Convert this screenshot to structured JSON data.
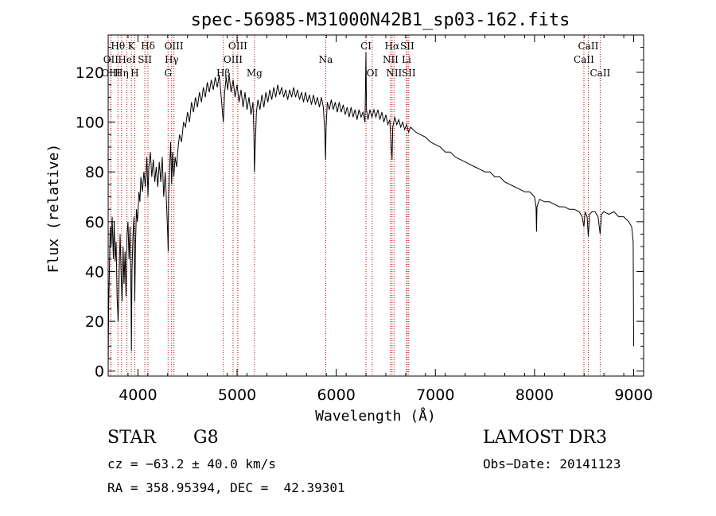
{
  "chart_data": {
    "type": "line",
    "title": "spec-56985-M31000N42B1_sp03-162.fits",
    "xlabel": "Wavelength (Å)",
    "ylabel": "Flux (relative)",
    "xlim": [
      3700,
      9100
    ],
    "ylim": [
      -2,
      135
    ],
    "x_ticks": [
      4000,
      5000,
      6000,
      7000,
      8000,
      9000
    ],
    "y_ticks": [
      0,
      20,
      40,
      60,
      80,
      100,
      120
    ],
    "series": [
      {
        "name": "spectrum",
        "points": [
          [
            3700,
            3
          ],
          [
            3705,
            25
          ],
          [
            3712,
            40
          ],
          [
            3720,
            58
          ],
          [
            3730,
            50
          ],
          [
            3740,
            62
          ],
          [
            3752,
            45
          ],
          [
            3760,
            60
          ],
          [
            3770,
            44
          ],
          [
            3780,
            52
          ],
          [
            3790,
            30
          ],
          [
            3800,
            20
          ],
          [
            3810,
            38
          ],
          [
            3820,
            55
          ],
          [
            3830,
            40
          ],
          [
            3840,
            28
          ],
          [
            3850,
            50
          ],
          [
            3860,
            35
          ],
          [
            3870,
            48
          ],
          [
            3880,
            30
          ],
          [
            3890,
            55
          ],
          [
            3900,
            60
          ],
          [
            3910,
            45
          ],
          [
            3920,
            58
          ],
          [
            3930,
            30
          ],
          [
            3934,
            8
          ],
          [
            3940,
            40
          ],
          [
            3950,
            55
          ],
          [
            3960,
            62
          ],
          [
            3968,
            28
          ],
          [
            3975,
            50
          ],
          [
            3985,
            65
          ],
          [
            3995,
            60
          ],
          [
            4010,
            72
          ],
          [
            4020,
            68
          ],
          [
            4030,
            78
          ],
          [
            4045,
            72
          ],
          [
            4060,
            80
          ],
          [
            4075,
            74
          ],
          [
            4090,
            86
          ],
          [
            4101,
            70
          ],
          [
            4110,
            82
          ],
          [
            4125,
            88
          ],
          [
            4140,
            78
          ],
          [
            4155,
            85
          ],
          [
            4170,
            76
          ],
          [
            4185,
            82
          ],
          [
            4200,
            74
          ],
          [
            4215,
            84
          ],
          [
            4230,
            76
          ],
          [
            4245,
            86
          ],
          [
            4260,
            70
          ],
          [
            4275,
            80
          ],
          [
            4290,
            66
          ],
          [
            4300,
            55
          ],
          [
            4305,
            48
          ],
          [
            4310,
            70
          ],
          [
            4320,
            82
          ],
          [
            4330,
            92
          ],
          [
            4340,
            75
          ],
          [
            4350,
            88
          ],
          [
            4362,
            78
          ],
          [
            4375,
            86
          ],
          [
            4390,
            82
          ],
          [
            4405,
            90
          ],
          [
            4420,
            95
          ],
          [
            4440,
            92
          ],
          [
            4460,
            100
          ],
          [
            4480,
            98
          ],
          [
            4500,
            104
          ],
          [
            4520,
            100
          ],
          [
            4540,
            108
          ],
          [
            4560,
            104
          ],
          [
            4580,
            110
          ],
          [
            4600,
            106
          ],
          [
            4620,
            112
          ],
          [
            4640,
            108
          ],
          [
            4660,
            114
          ],
          [
            4680,
            110
          ],
          [
            4700,
            116
          ],
          [
            4720,
            112
          ],
          [
            4740,
            117
          ],
          [
            4760,
            113
          ],
          [
            4780,
            118
          ],
          [
            4800,
            114
          ],
          [
            4820,
            119
          ],
          [
            4840,
            110
          ],
          [
            4861,
            100
          ],
          [
            4875,
            112
          ],
          [
            4890,
            118
          ],
          [
            4905,
            113
          ],
          [
            4920,
            119
          ],
          [
            4940,
            112
          ],
          [
            4960,
            117
          ],
          [
            4980,
            110
          ],
          [
            5000,
            115
          ],
          [
            5020,
            108
          ],
          [
            5040,
            113
          ],
          [
            5060,
            106
          ],
          [
            5080,
            112
          ],
          [
            5100,
            105
          ],
          [
            5120,
            110
          ],
          [
            5140,
            103
          ],
          [
            5160,
            108
          ],
          [
            5170,
            95
          ],
          [
            5175,
            80
          ],
          [
            5183,
            90
          ],
          [
            5195,
            104
          ],
          [
            5210,
            109
          ],
          [
            5230,
            105
          ],
          [
            5250,
            111
          ],
          [
            5270,
            106
          ],
          [
            5290,
            112
          ],
          [
            5310,
            108
          ],
          [
            5330,
            113
          ],
          [
            5350,
            109
          ],
          [
            5370,
            114
          ],
          [
            5390,
            110
          ],
          [
            5410,
            115
          ],
          [
            5430,
            111
          ],
          [
            5450,
            114
          ],
          [
            5470,
            110
          ],
          [
            5490,
            113
          ],
          [
            5510,
            109
          ],
          [
            5530,
            113
          ],
          [
            5550,
            110
          ],
          [
            5570,
            114
          ],
          [
            5590,
            110
          ],
          [
            5610,
            113
          ],
          [
            5630,
            109
          ],
          [
            5650,
            112
          ],
          [
            5670,
            108
          ],
          [
            5690,
            112
          ],
          [
            5710,
            108
          ],
          [
            5730,
            111
          ],
          [
            5750,
            107
          ],
          [
            5770,
            111
          ],
          [
            5790,
            107
          ],
          [
            5810,
            110
          ],
          [
            5830,
            106
          ],
          [
            5850,
            110
          ],
          [
            5870,
            106
          ],
          [
            5885,
            96
          ],
          [
            5892,
            85
          ],
          [
            5898,
            98
          ],
          [
            5910,
            108
          ],
          [
            5930,
            105
          ],
          [
            5950,
            109
          ],
          [
            5970,
            105
          ],
          [
            5990,
            108
          ],
          [
            6010,
            104
          ],
          [
            6030,
            108
          ],
          [
            6050,
            104
          ],
          [
            6070,
            107
          ],
          [
            6090,
            103
          ],
          [
            6110,
            106
          ],
          [
            6130,
            102
          ],
          [
            6150,
            106
          ],
          [
            6170,
            102
          ],
          [
            6190,
            105
          ],
          [
            6210,
            101
          ],
          [
            6230,
            105
          ],
          [
            6250,
            102
          ],
          [
            6270,
            104
          ],
          [
            6290,
            100
          ],
          [
            6300,
            128
          ],
          [
            6305,
            105
          ],
          [
            6320,
            101
          ],
          [
            6340,
            105
          ],
          [
            6360,
            102
          ],
          [
            6380,
            105
          ],
          [
            6400,
            102
          ],
          [
            6420,
            105
          ],
          [
            6440,
            101
          ],
          [
            6460,
            104
          ],
          [
            6480,
            100
          ],
          [
            6500,
            103
          ],
          [
            6520,
            99
          ],
          [
            6540,
            101
          ],
          [
            6555,
            90
          ],
          [
            6563,
            85
          ],
          [
            6570,
            98
          ],
          [
            6590,
            102
          ],
          [
            6610,
            99
          ],
          [
            6630,
            101
          ],
          [
            6650,
            98
          ],
          [
            6670,
            100
          ],
          [
            6690,
            97
          ],
          [
            6710,
            99
          ],
          [
            6730,
            96
          ],
          [
            6750,
            98
          ],
          [
            6800,
            96
          ],
          [
            6850,
            95
          ],
          [
            6900,
            94
          ],
          [
            6950,
            92
          ],
          [
            7000,
            91
          ],
          [
            7050,
            90
          ],
          [
            7100,
            88
          ],
          [
            7150,
            88
          ],
          [
            7200,
            86
          ],
          [
            7250,
            85
          ],
          [
            7300,
            84
          ],
          [
            7350,
            83
          ],
          [
            7400,
            82
          ],
          [
            7450,
            81
          ],
          [
            7500,
            80
          ],
          [
            7550,
            80
          ],
          [
            7600,
            78
          ],
          [
            7650,
            78
          ],
          [
            7700,
            76
          ],
          [
            7750,
            75
          ],
          [
            7800,
            74
          ],
          [
            7850,
            73
          ],
          [
            7900,
            72
          ],
          [
            7950,
            72
          ],
          [
            8000,
            70
          ],
          [
            8015,
            66
          ],
          [
            8020,
            56
          ],
          [
            8025,
            66
          ],
          [
            8050,
            69
          ],
          [
            8100,
            68
          ],
          [
            8150,
            68
          ],
          [
            8200,
            67
          ],
          [
            8250,
            66
          ],
          [
            8300,
            66
          ],
          [
            8350,
            65
          ],
          [
            8400,
            65
          ],
          [
            8450,
            64
          ],
          [
            8480,
            62
          ],
          [
            8498,
            58
          ],
          [
            8510,
            64
          ],
          [
            8530,
            62
          ],
          [
            8542,
            54
          ],
          [
            8555,
            63
          ],
          [
            8580,
            64
          ],
          [
            8610,
            64
          ],
          [
            8640,
            62
          ],
          [
            8662,
            55
          ],
          [
            8675,
            63
          ],
          [
            8700,
            64
          ],
          [
            8750,
            63
          ],
          [
            8800,
            64
          ],
          [
            8850,
            62
          ],
          [
            8900,
            62
          ],
          [
            8950,
            60
          ],
          [
            8980,
            58
          ],
          [
            8995,
            52
          ],
          [
            9000,
            10
          ]
        ]
      }
    ],
    "spectral_lines": [
      {
        "label": "Hθ",
        "x": 3798,
        "row": 0
      },
      {
        "label": "OII",
        "x": 3727,
        "row": 1
      },
      {
        "label": "OIII",
        "x": 3727,
        "row": 2
      },
      {
        "label": "K",
        "x": 3934,
        "row": 0
      },
      {
        "label": "HeI",
        "x": 3889,
        "row": 1
      },
      {
        "label": "Hη",
        "x": 3835,
        "row": 2
      },
      {
        "label": "Hδ",
        "x": 4101,
        "row": 0
      },
      {
        "label": "SII",
        "x": 4070,
        "row": 1
      },
      {
        "label": "H",
        "x": 3968,
        "row": 2
      },
      {
        "label": "OIII",
        "x": 4363,
        "row": 0
      },
      {
        "label": "Hγ",
        "x": 4340,
        "row": 1
      },
      {
        "label": "G",
        "x": 4304,
        "row": 2
      },
      {
        "label": "OIII",
        "x": 5007,
        "row": 0
      },
      {
        "label": "OIII",
        "x": 4959,
        "row": 1
      },
      {
        "label": "Hβ",
        "x": 4861,
        "row": 2
      },
      {
        "label": "Mg",
        "x": 5175,
        "row": 2
      },
      {
        "label": "Na",
        "x": 5894,
        "row": 1
      },
      {
        "label": "CI",
        "x": 6300,
        "row": 0
      },
      {
        "label": "OI",
        "x": 6363,
        "row": 2
      },
      {
        "label": "Hα",
        "x": 6563,
        "row": 0
      },
      {
        "label": "NII",
        "x": 6548,
        "row": 1
      },
      {
        "label": "NII",
        "x": 6583,
        "row": 2
      },
      {
        "label": "SII",
        "x": 6716,
        "row": 0
      },
      {
        "label": "Li",
        "x": 6708,
        "row": 1
      },
      {
        "label": "SII",
        "x": 6731,
        "row": 2
      },
      {
        "label": "CaII",
        "x": 8542,
        "row": 0
      },
      {
        "label": "CaII",
        "x": 8498,
        "row": 1
      },
      {
        "label": "CaII",
        "x": 8662,
        "row": 2
      }
    ]
  },
  "info": {
    "object_class": "STAR",
    "subclass": "G8",
    "survey": "LAMOST DR3",
    "cz": "cz = −63.2 ± 40.0 km/s",
    "obs_date": "Obs−Date: 20141123",
    "coords": "RA = 358.95394, DEC =  42.39301"
  },
  "colors": {
    "spectrum": "#000000",
    "line_markers": "#cc0000"
  }
}
